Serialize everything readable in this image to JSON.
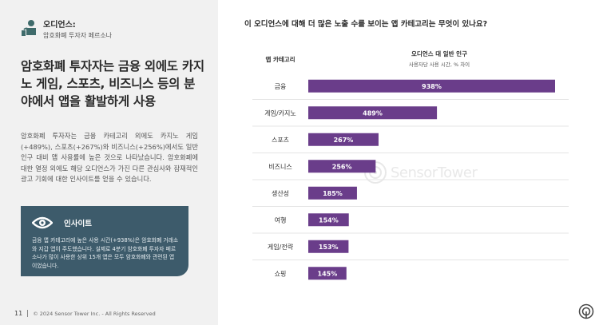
{
  "audience": {
    "label": "오디언스:",
    "name": "암호화폐 투자자 페르소나"
  },
  "headline": "암호화폐 투자자는 금융 외에도 카지노 게임, 스포츠, 비즈니스 등의 분야에서 앱을 활발하게 사용",
  "body": "암호화폐 투자자는 금융 카테고리 외에도 카지노 게임(+489%), 스포츠(+267%)와 비즈니스(+256%)에서도 일반 인구 대비 앱 사용률에 높은 것으로 나타났습니다. 암호화폐에 대한 열정 외에도 해당 오디언스가 가진 다른 관심사와 잠재적인 광고 기회에 대한 인사이트를 얻을 수 있습니다.",
  "insight": {
    "title": "인사이트",
    "text": "금융 앱 카테고리에 높은 사용 시간(+938%)은 암호화폐 거래소와 지갑 앱이 주도했습니다. 실제로 4분기 암호화폐 투자자 페르소나가 많이 사용한 상위 15개 앱은 모두 암호화폐와 관련된 앱이었습니다."
  },
  "footer": {
    "page": "11",
    "copyright": "© 2024 Sensor Tower Inc. - All Rights Reserved"
  },
  "watermark": "SensorTower",
  "colors": {
    "bar": "#6a3d8a",
    "insight_bg": "#3d5b6b",
    "accent_icon": "#3f6b6b"
  },
  "chart_data": {
    "type": "bar",
    "orientation": "horizontal",
    "title": "이 오디언스에 대해 더 많은 노출 수를 보이는 앱 카테고리는 무엇이 있나요?",
    "category_header": "앱 카테고리",
    "series_header": "오디언스 대 일반 인구",
    "series_subheader": "사용자당 사용 시간, % 차이",
    "categories": [
      "금융",
      "게임/카지노",
      "스포츠",
      "비즈니스",
      "생산성",
      "여행",
      "게임/전략",
      "쇼핑"
    ],
    "values": [
      938,
      489,
      267,
      256,
      185,
      154,
      153,
      145
    ],
    "labels": [
      "938%",
      "489%",
      "267%",
      "256%",
      "185%",
      "154%",
      "153%",
      "145%"
    ],
    "unit": "%"
  }
}
